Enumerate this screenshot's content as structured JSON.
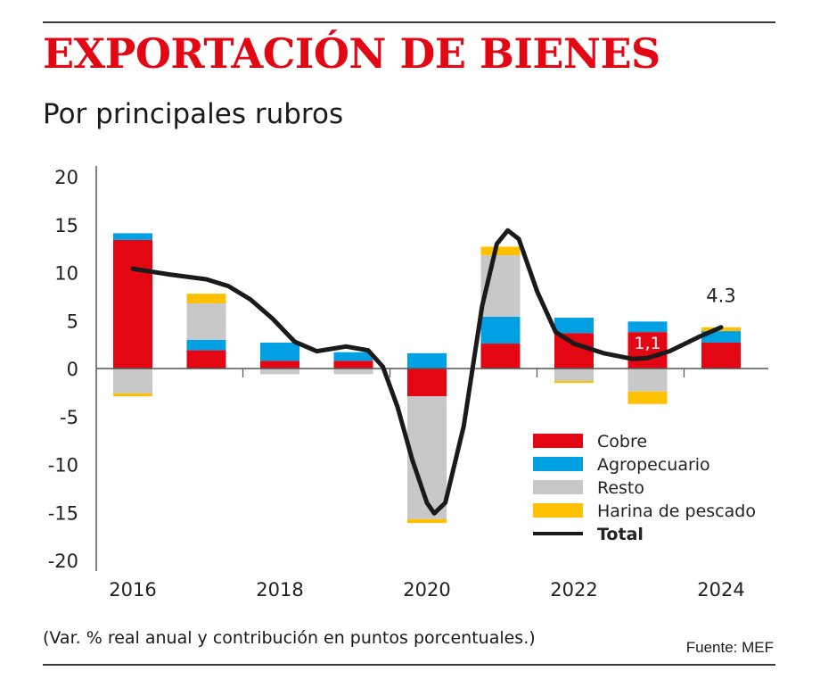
{
  "header": {
    "title": "EXPORTACIÓN DE BIENES",
    "subtitle": "Por principales rubros"
  },
  "footer": {
    "note": "(Var. % real anual y contribución en puntos porcentuales.)",
    "source": "Fuente: MEF"
  },
  "chart_data": {
    "type": "bar",
    "stacked": true,
    "title": "EXPORTACIÓN DE BIENES",
    "subtitle": "Por principales rubros",
    "xlabel": "",
    "ylabel": "",
    "ylim": [
      -20,
      20
    ],
    "yticks": [
      20,
      15,
      10,
      5,
      0,
      -5,
      -10,
      -15,
      -20
    ],
    "categories": [
      2016,
      2017,
      2018,
      2019,
      2020,
      2021,
      2022,
      2023,
      2024
    ],
    "xtick_labels": [
      "2016",
      "2018",
      "2020",
      "2022",
      "2024"
    ],
    "series": [
      {
        "name": "Cobre",
        "color": "#e30613",
        "values": [
          13.4,
          1.9,
          0.8,
          0.8,
          -2.9,
          2.6,
          3.7,
          3.8,
          2.7
        ]
      },
      {
        "name": "Agropecuario",
        "color": "#00a0e3",
        "values": [
          0.7,
          1.1,
          1.9,
          0.9,
          1.6,
          2.8,
          1.6,
          1.1,
          1.2
        ]
      },
      {
        "name": "Resto",
        "color": "#c8c8c8",
        "values": [
          -2.6,
          3.8,
          -0.6,
          -0.6,
          -12.8,
          6.4,
          -1.3,
          -2.4,
          0.0
        ]
      },
      {
        "name": "Harina de pescado",
        "color": "#ffc000",
        "values": [
          -0.3,
          1.0,
          0.0,
          0.0,
          -0.4,
          0.9,
          -0.2,
          -1.3,
          0.4
        ]
      }
    ],
    "total": {
      "name": "Total",
      "color": "#1a1a1a",
      "points": [
        [
          2016,
          10.4
        ],
        [
          2016.5,
          9.8
        ],
        [
          2017,
          9.3
        ],
        [
          2017.3,
          8.6
        ],
        [
          2017.6,
          7.2
        ],
        [
          2017.9,
          5.2
        ],
        [
          2018.2,
          2.8
        ],
        [
          2018.5,
          1.8
        ],
        [
          2018.9,
          2.3
        ],
        [
          2019.2,
          1.9
        ],
        [
          2019.4,
          0.2
        ],
        [
          2019.6,
          -4.0
        ],
        [
          2019.8,
          -9.5
        ],
        [
          2020,
          -14.0
        ],
        [
          2020.1,
          -15.1
        ],
        [
          2020.25,
          -14.0
        ],
        [
          2020.5,
          -6.0
        ],
        [
          2020.75,
          6.5
        ],
        [
          2020.95,
          13.0
        ],
        [
          2021.1,
          14.4
        ],
        [
          2021.25,
          13.5
        ],
        [
          2021.5,
          8.0
        ],
        [
          2021.75,
          3.8
        ],
        [
          2022,
          2.6
        ],
        [
          2022.4,
          1.6
        ],
        [
          2022.8,
          1.0
        ],
        [
          2023,
          1.1
        ],
        [
          2023.3,
          1.8
        ],
        [
          2023.7,
          3.3
        ],
        [
          2024,
          4.3
        ]
      ]
    },
    "annotations": [
      {
        "text": "1,1",
        "x": 2023,
        "y": 2.7,
        "color": "#ffffff"
      },
      {
        "text": "4.3",
        "x": 2024,
        "y": 7.6,
        "color": "#222222"
      }
    ],
    "legend": {
      "placement": "bottom-right",
      "entries": [
        "Cobre",
        "Agropecuario",
        "Resto",
        "Harina de pescado",
        "Total"
      ]
    },
    "grid": false
  }
}
